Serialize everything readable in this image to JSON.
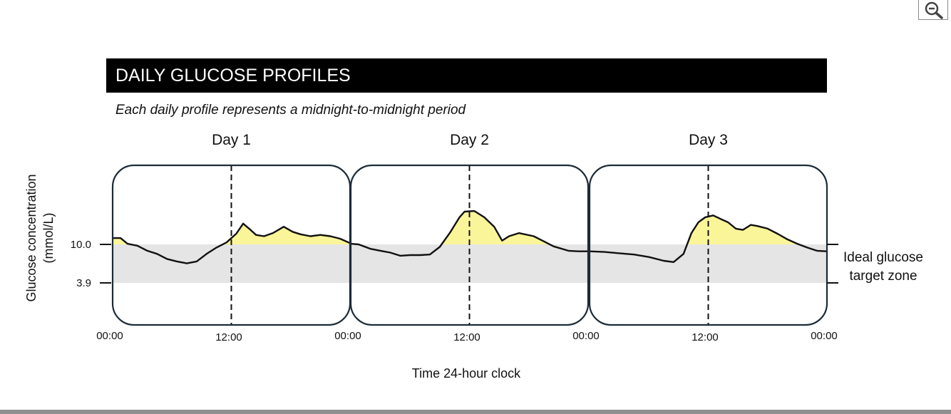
{
  "toolbar": {
    "zoom_icon": "zoom-out-magnifier-icon"
  },
  "chart_data": {
    "type": "line",
    "title": "DAILY GLUCOSE PROFILES",
    "subtitle": "Each daily profile represents a midnight-to-midnight period",
    "ylabel": [
      "Glucose concentration",
      "(mmol/L)"
    ],
    "xlabel": "Time 24-hour clock",
    "ylim": [
      0,
      20
    ],
    "y_ticks": [
      {
        "value": 10.0,
        "label": "10.0"
      },
      {
        "value": 3.9,
        "label": "3.9"
      }
    ],
    "target_zone": {
      "low": 3.9,
      "high": 10.0,
      "label": [
        "Ideal glucose",
        "target zone"
      ],
      "fill_color": "#e5e5e5"
    },
    "above_target_fill_color": "#fbf59a",
    "line_color": "#111111",
    "x_ticks": [
      {
        "hour": 0,
        "label": "00:00"
      },
      {
        "hour": 36,
        "label": "12:00"
      },
      {
        "hour": 24,
        "label": "00:00"
      },
      {
        "hour": 12,
        "label": "12:00"
      },
      {
        "hour": 48,
        "label": "00:00"
      },
      {
        "hour": 60,
        "label": "12:00"
      },
      {
        "hour": 72,
        "label": "00:00"
      }
    ],
    "panels": [
      {
        "name": "Day 1",
        "x": [
          0,
          0.8,
          1.5,
          2.5,
          3.5,
          4.5,
          5.5,
          6.5,
          7.5,
          8.5,
          9.5,
          10.5,
          11.5,
          12.5,
          13.2,
          13.8,
          14.5,
          15.3,
          16.2,
          17.3,
          18.2,
          19,
          20,
          21,
          22,
          23,
          24
        ],
        "y": [
          11.0,
          11.0,
          10.1,
          9.8,
          9.0,
          8.5,
          7.7,
          7.3,
          7.0,
          7.3,
          8.5,
          9.5,
          10.3,
          11.7,
          13.3,
          12.5,
          11.5,
          11.3,
          11.8,
          12.8,
          12.0,
          11.6,
          11.3,
          11.5,
          11.3,
          10.9,
          10.2
        ]
      },
      {
        "name": "Day 2",
        "x": [
          0,
          0.8,
          2,
          3,
          4,
          5,
          6,
          7,
          8,
          9,
          10,
          11,
          11.5,
          12.5,
          13.5,
          14.5,
          15.3,
          16,
          17,
          18.5,
          19.5,
          20.5,
          22,
          23,
          24
        ],
        "y": [
          10.1,
          10.0,
          9.3,
          9.0,
          8.7,
          8.2,
          8.3,
          8.3,
          8.4,
          9.6,
          11.8,
          14.3,
          15.2,
          15.3,
          14.3,
          12.8,
          10.6,
          11.3,
          11.8,
          11.3,
          10.5,
          9.7,
          9.0,
          8.9,
          8.9
        ]
      },
      {
        "name": "Day 3",
        "x": [
          0,
          1.5,
          3,
          4.5,
          6,
          7.5,
          8.5,
          9.5,
          10.3,
          11,
          11.7,
          12.5,
          13.3,
          14,
          14.8,
          15.5,
          16.3,
          17,
          18,
          19,
          20,
          21,
          22,
          23,
          24
        ],
        "y": [
          8.9,
          8.8,
          8.6,
          8.4,
          8.0,
          7.4,
          7.2,
          8.5,
          11.8,
          13.5,
          14.3,
          14.6,
          14.0,
          13.5,
          12.5,
          12.3,
          13.1,
          12.9,
          12.5,
          11.7,
          10.8,
          10.1,
          9.5,
          9.0,
          8.9
        ]
      }
    ]
  }
}
